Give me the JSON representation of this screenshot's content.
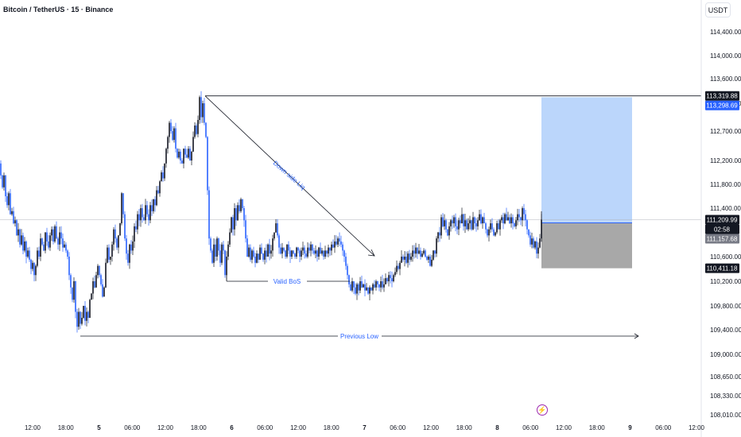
{
  "header": {
    "title": "Bitcoin / TetherUS · 15 · Binance",
    "currency": "USDT"
  },
  "icons": {
    "event": "lightning-icon"
  },
  "colors": {
    "up": "#131722",
    "down": "#2962ff",
    "target_zone": "#bbd6fb",
    "stop_zone": "#a8a8a8",
    "annotation": "#2962ff",
    "line": "#131722"
  },
  "chart_data": {
    "type": "candlestick",
    "title": "Bitcoin / TetherUS · 15 · Binance",
    "ylim": [
      108000,
      114700
    ],
    "y_ticks": [
      "114,400.00",
      "114,000.00",
      "113,600.00",
      "113,200.00",
      "112,700.00",
      "112,200.00",
      "111,800.00",
      "111,400.00",
      "110,600.00",
      "110,200.00",
      "109,800.00",
      "109,400.00",
      "109,000.00",
      "108,650.00",
      "108,330.00",
      "108,010.00"
    ],
    "x_ticks": [
      "12:00",
      "18:00",
      "5",
      "06:00",
      "12:00",
      "18:00",
      "6",
      "06:00",
      "12:00",
      "18:00",
      "7",
      "06:00",
      "12:00",
      "18:00",
      "8",
      "06:00",
      "12:00",
      "18:00",
      "9",
      "06:00",
      "12:00"
    ],
    "price_labels": [
      {
        "text": "113,319.88",
        "value": 113319.88,
        "style": "dark"
      },
      {
        "text": "113,298.69",
        "value": 113298.69,
        "style": "blue"
      },
      {
        "text": "111,209.99",
        "value": 111209.99,
        "style": "dark"
      },
      {
        "text": "02:58",
        "value": 111060,
        "style": "dark"
      },
      {
        "text": "111,157.68",
        "value": 111157.68,
        "style": "grey"
      },
      {
        "text": "110,411.18",
        "value": 110411.18,
        "style": "dark"
      }
    ],
    "last_price": 111209.99,
    "position": {
      "entry": 111157.68,
      "target": 113298.69,
      "stop": 110411.18
    },
    "resistance_level": 113319.88,
    "annotations": [
      {
        "text": "Down side Liq"
      },
      {
        "text": "Valid BoS",
        "value": 110200
      },
      {
        "text": "Previous Low",
        "value": 109330
      }
    ],
    "price_path": [
      [
        0,
        112150
      ],
      [
        2,
        111950
      ],
      [
        4,
        111750
      ],
      [
        6,
        111950
      ],
      [
        8,
        111600
      ],
      [
        10,
        111450
      ],
      [
        12,
        111650
      ],
      [
        14,
        111300
      ],
      [
        16,
        111350
      ],
      [
        18,
        111150
      ],
      [
        20,
        111200
      ],
      [
        22,
        110950
      ],
      [
        24,
        111050
      ],
      [
        26,
        110800
      ],
      [
        28,
        110950
      ],
      [
        30,
        110700
      ],
      [
        32,
        110850
      ],
      [
        34,
        110600
      ],
      [
        36,
        110700
      ],
      [
        38,
        110550
      ],
      [
        40,
        110400
      ],
      [
        42,
        110500
      ],
      [
        44,
        110300
      ],
      [
        46,
        110450
      ],
      [
        48,
        110700
      ],
      [
        50,
        110600
      ],
      [
        52,
        110900
      ],
      [
        54,
        110800
      ],
      [
        56,
        110700
      ],
      [
        58,
        111000
      ],
      [
        60,
        110850
      ],
      [
        62,
        110750
      ],
      [
        64,
        110950
      ],
      [
        66,
        111050
      ],
      [
        68,
        110850
      ],
      [
        70,
        111100
      ],
      [
        72,
        110900
      ],
      [
        74,
        110800
      ],
      [
        76,
        111000
      ],
      [
        78,
        110900
      ],
      [
        80,
        110750
      ],
      [
        82,
        110800
      ],
      [
        84,
        110700
      ],
      [
        86,
        110600
      ],
      [
        88,
        110300
      ],
      [
        90,
        110100
      ],
      [
        92,
        109900
      ],
      [
        94,
        110200
      ],
      [
        96,
        109700
      ],
      [
        98,
        109450
      ],
      [
        100,
        109700
      ],
      [
        102,
        109500
      ],
      [
        104,
        109600
      ],
      [
        106,
        109800
      ],
      [
        108,
        109550
      ],
      [
        110,
        109700
      ],
      [
        112,
        109600
      ],
      [
        114,
        109900
      ],
      [
        116,
        110000
      ],
      [
        118,
        110200
      ],
      [
        120,
        110100
      ],
      [
        122,
        110300
      ],
      [
        124,
        110450
      ],
      [
        126,
        110300
      ],
      [
        128,
        110150
      ],
      [
        130,
        109950
      ],
      [
        132,
        110100
      ],
      [
        134,
        110500
      ],
      [
        136,
        110750
      ],
      [
        138,
        110550
      ],
      [
        140,
        110600
      ],
      [
        142,
        110800
      ],
      [
        144,
        111050
      ],
      [
        146,
        110900
      ],
      [
        148,
        110750
      ],
      [
        150,
        110950
      ],
      [
        152,
        111150
      ],
      [
        154,
        111650
      ],
      [
        156,
        111300
      ],
      [
        158,
        110900
      ],
      [
        160,
        110650
      ],
      [
        162,
        110500
      ],
      [
        164,
        110800
      ],
      [
        166,
        110700
      ],
      [
        168,
        110850
      ],
      [
        170,
        111100
      ],
      [
        172,
        111050
      ],
      [
        174,
        111300
      ],
      [
        176,
        111200
      ],
      [
        178,
        111400
      ],
      [
        180,
        111250
      ],
      [
        182,
        111200
      ],
      [
        184,
        111450
      ],
      [
        186,
        111300
      ],
      [
        188,
        111200
      ],
      [
        190,
        111450
      ],
      [
        192,
        111350
      ],
      [
        194,
        111550
      ],
      [
        196,
        111450
      ],
      [
        198,
        111700
      ],
      [
        200,
        111650
      ],
      [
        202,
        111850
      ],
      [
        204,
        112000
      ],
      [
        206,
        111900
      ],
      [
        208,
        112150
      ],
      [
        210,
        112400
      ],
      [
        212,
        112600
      ],
      [
        214,
        112850
      ],
      [
        216,
        112700
      ],
      [
        218,
        112550
      ],
      [
        220,
        112750
      ],
      [
        222,
        112400
      ],
      [
        224,
        112250
      ],
      [
        226,
        112350
      ],
      [
        228,
        112200
      ],
      [
        230,
        112150
      ],
      [
        232,
        112400
      ],
      [
        234,
        112300
      ],
      [
        236,
        112250
      ],
      [
        238,
        112400
      ],
      [
        240,
        112200
      ],
      [
        242,
        112350
      ],
      [
        244,
        112600
      ],
      [
        246,
        112800
      ],
      [
        248,
        112650
      ],
      [
        250,
        112900
      ],
      [
        252,
        113300
      ],
      [
        254,
        112950
      ],
      [
        256,
        113200
      ],
      [
        258,
        112850
      ],
      [
        260,
        112600
      ],
      [
        262,
        111700
      ],
      [
        264,
        110900
      ],
      [
        266,
        110700
      ],
      [
        268,
        110500
      ],
      [
        270,
        110800
      ],
      [
        272,
        110600
      ],
      [
        274,
        110900
      ],
      [
        276,
        110700
      ],
      [
        278,
        110500
      ],
      [
        280,
        110800
      ],
      [
        282,
        110700
      ],
      [
        284,
        110300
      ],
      [
        286,
        110600
      ],
      [
        288,
        110800
      ],
      [
        290,
        111000
      ],
      [
        292,
        111250
      ],
      [
        294,
        111050
      ],
      [
        296,
        111400
      ],
      [
        298,
        111200
      ],
      [
        300,
        111450
      ],
      [
        302,
        111350
      ],
      [
        304,
        111550
      ],
      [
        306,
        111400
      ],
      [
        308,
        111200
      ],
      [
        310,
        110900
      ],
      [
        312,
        110600
      ],
      [
        314,
        110750
      ],
      [
        316,
        110550
      ],
      [
        318,
        110700
      ],
      [
        320,
        110600
      ],
      [
        322,
        110500
      ],
      [
        324,
        110650
      ],
      [
        326,
        110550
      ],
      [
        328,
        110750
      ],
      [
        330,
        110650
      ],
      [
        332,
        110550
      ],
      [
        334,
        110700
      ],
      [
        336,
        110600
      ],
      [
        338,
        110800
      ],
      [
        340,
        110650
      ],
      [
        342,
        110700
      ],
      [
        344,
        110900
      ],
      [
        346,
        111000
      ],
      [
        348,
        111150
      ],
      [
        350,
        110950
      ],
      [
        352,
        110750
      ],
      [
        354,
        110650
      ],
      [
        356,
        110750
      ],
      [
        358,
        110700
      ],
      [
        360,
        110600
      ],
      [
        362,
        110800
      ],
      [
        364,
        110700
      ],
      [
        366,
        110600
      ],
      [
        368,
        110700
      ],
      [
        370,
        110650
      ],
      [
        372,
        110600
      ],
      [
        374,
        110750
      ],
      [
        376,
        110700
      ],
      [
        378,
        110600
      ],
      [
        380,
        110700
      ],
      [
        382,
        110750
      ],
      [
        384,
        110650
      ],
      [
        386,
        110600
      ],
      [
        388,
        110750
      ],
      [
        390,
        110700
      ],
      [
        392,
        110800
      ],
      [
        394,
        110700
      ],
      [
        396,
        110650
      ],
      [
        398,
        110700
      ],
      [
        400,
        110600
      ],
      [
        402,
        110750
      ],
      [
        404,
        110650
      ],
      [
        406,
        110700
      ],
      [
        408,
        110600
      ],
      [
        410,
        110700
      ],
      [
        412,
        110650
      ],
      [
        414,
        110750
      ],
      [
        416,
        110700
      ],
      [
        418,
        110800
      ],
      [
        420,
        110750
      ],
      [
        422,
        110850
      ],
      [
        424,
        110800
      ],
      [
        426,
        110900
      ],
      [
        428,
        110850
      ],
      [
        430,
        110800
      ],
      [
        432,
        110700
      ],
      [
        434,
        110600
      ],
      [
        436,
        110450
      ],
      [
        438,
        110300
      ],
      [
        440,
        110150
      ],
      [
        442,
        110050
      ],
      [
        444,
        110200
      ],
      [
        446,
        110100
      ],
      [
        448,
        110000
      ],
      [
        450,
        110150
      ],
      [
        452,
        110050
      ],
      [
        454,
        110200
      ],
      [
        456,
        110100
      ],
      [
        458,
        110150
      ],
      [
        460,
        110050
      ],
      [
        462,
        110100
      ],
      [
        464,
        110000
      ],
      [
        466,
        110100
      ],
      [
        468,
        110050
      ],
      [
        470,
        110150
      ],
      [
        472,
        110100
      ],
      [
        474,
        110200
      ],
      [
        476,
        110150
      ],
      [
        478,
        110100
      ],
      [
        480,
        110200
      ],
      [
        482,
        110100
      ],
      [
        484,
        110150
      ],
      [
        486,
        110250
      ],
      [
        488,
        110200
      ],
      [
        490,
        110300
      ],
      [
        492,
        110250
      ],
      [
        494,
        110200
      ],
      [
        496,
        110300
      ],
      [
        498,
        110350
      ],
      [
        500,
        110450
      ],
      [
        502,
        110400
      ],
      [
        504,
        110500
      ],
      [
        506,
        110600
      ],
      [
        508,
        110550
      ],
      [
        510,
        110600
      ],
      [
        512,
        110500
      ],
      [
        514,
        110650
      ],
      [
        516,
        110550
      ],
      [
        518,
        110600
      ],
      [
        520,
        110700
      ],
      [
        522,
        110650
      ],
      [
        524,
        110750
      ],
      [
        526,
        110650
      ],
      [
        528,
        110700
      ],
      [
        530,
        110600
      ],
      [
        532,
        110650
      ],
      [
        534,
        110700
      ],
      [
        536,
        110600
      ],
      [
        538,
        110550
      ],
      [
        540,
        110600
      ],
      [
        542,
        110450
      ],
      [
        544,
        110550
      ],
      [
        546,
        110700
      ],
      [
        548,
        110650
      ],
      [
        550,
        110900
      ],
      [
        552,
        111000
      ],
      [
        554,
        110950
      ],
      [
        556,
        111250
      ],
      [
        558,
        111100
      ],
      [
        560,
        111200
      ],
      [
        562,
        111050
      ],
      [
        564,
        110950
      ],
      [
        566,
        111100
      ],
      [
        568,
        111200
      ],
      [
        570,
        111150
      ],
      [
        572,
        111250
      ],
      [
        574,
        111100
      ],
      [
        576,
        111050
      ],
      [
        578,
        111200
      ],
      [
        580,
        111150
      ],
      [
        582,
        111300
      ],
      [
        584,
        111100
      ],
      [
        586,
        111200
      ],
      [
        588,
        111050
      ],
      [
        590,
        111150
      ],
      [
        592,
        111200
      ],
      [
        594,
        111050
      ],
      [
        596,
        111250
      ],
      [
        598,
        111150
      ],
      [
        600,
        111100
      ],
      [
        602,
        111200
      ],
      [
        604,
        111300
      ],
      [
        606,
        111150
      ],
      [
        608,
        111250
      ],
      [
        610,
        111150
      ],
      [
        612,
        111050
      ],
      [
        614,
        110950
      ],
      [
        616,
        111050
      ],
      [
        618,
        111150
      ],
      [
        620,
        111050
      ],
      [
        622,
        110950
      ],
      [
        624,
        111000
      ],
      [
        626,
        111150
      ],
      [
        628,
        111050
      ],
      [
        630,
        111200
      ],
      [
        632,
        111250
      ],
      [
        634,
        111150
      ],
      [
        636,
        111300
      ],
      [
        638,
        111200
      ],
      [
        640,
        111250
      ],
      [
        642,
        111150
      ],
      [
        644,
        111250
      ],
      [
        646,
        111150
      ],
      [
        648,
        111100
      ],
      [
        650,
        111200
      ],
      [
        652,
        111300
      ],
      [
        654,
        111250
      ],
      [
        656,
        111200
      ],
      [
        658,
        111400
      ],
      [
        660,
        111300
      ],
      [
        662,
        111200
      ],
      [
        664,
        111050
      ],
      [
        666,
        110950
      ],
      [
        668,
        110800
      ],
      [
        670,
        110900
      ],
      [
        672,
        110750
      ],
      [
        674,
        110850
      ],
      [
        676,
        110650
      ],
      [
        678,
        110750
      ],
      [
        680,
        110900
      ],
      [
        682,
        111210
      ]
    ]
  }
}
